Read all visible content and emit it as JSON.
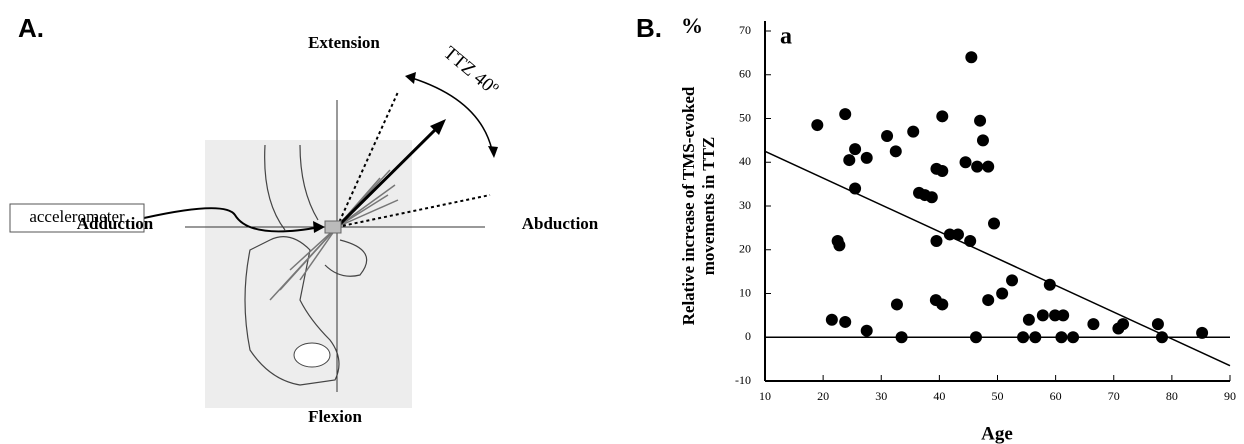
{
  "panel_a": {
    "label": "A.",
    "extension": "Extension",
    "ttz": "TTZ 40º",
    "accelerometer": "accelerometer",
    "adduction": "Adduction",
    "abduction": "Abduction",
    "flexion": "Flexion"
  },
  "chart_data": {
    "type": "scatter",
    "panel_label": "B.",
    "y_unit_label": "%",
    "annotation": "a",
    "ylabel": [
      "Relative increase of TMS-evoked",
      "movements in TTZ"
    ],
    "xlabel": "Age",
    "xlim": [
      10,
      90
    ],
    "xticks": [
      10,
      20,
      30,
      40,
      50,
      60,
      70,
      80,
      90
    ],
    "ylim": [
      -10,
      70
    ],
    "yticks": [
      -10,
      0,
      10,
      20,
      30,
      40,
      50,
      60,
      70
    ],
    "color": "#000000",
    "x": [
      19,
      23.8,
      24.5,
      25.5,
      27.5,
      25.5,
      31,
      32.5,
      35.5,
      40.5,
      45.5,
      47,
      47.5,
      39.5,
      40.5,
      44.5,
      46.5,
      48.4,
      36.5,
      37.5,
      38.7,
      22.5,
      22.8,
      39.5,
      41.8,
      43.2,
      45.3,
      49.4,
      21.5,
      23.8,
      27.5,
      32.7,
      33.5,
      39.4,
      40.5,
      46.3,
      48.4,
      50.8,
      52.5,
      54.4,
      55.4,
      56.5,
      57.8,
      59,
      59.9,
      61.3,
      61,
      63,
      66.5,
      70.8,
      71.6,
      77.6,
      78.3,
      85.2
    ],
    "y": [
      48.5,
      51,
      40.5,
      43,
      41,
      34,
      46,
      42.5,
      47,
      50.5,
      64,
      49.5,
      45,
      38.5,
      38,
      40,
      39,
      39,
      33,
      32.5,
      32,
      22,
      21,
      22,
      23.5,
      23.5,
      22,
      26,
      4,
      3.5,
      1.5,
      7.5,
      0,
      8.5,
      7.5,
      0,
      8.5,
      10,
      13,
      0,
      4,
      0,
      5,
      12,
      5,
      5,
      0,
      0,
      3,
      2,
      3,
      3,
      0,
      1
    ],
    "trend_line": {
      "x": [
        10,
        90
      ],
      "y": [
        42.5,
        -6.5
      ]
    }
  }
}
